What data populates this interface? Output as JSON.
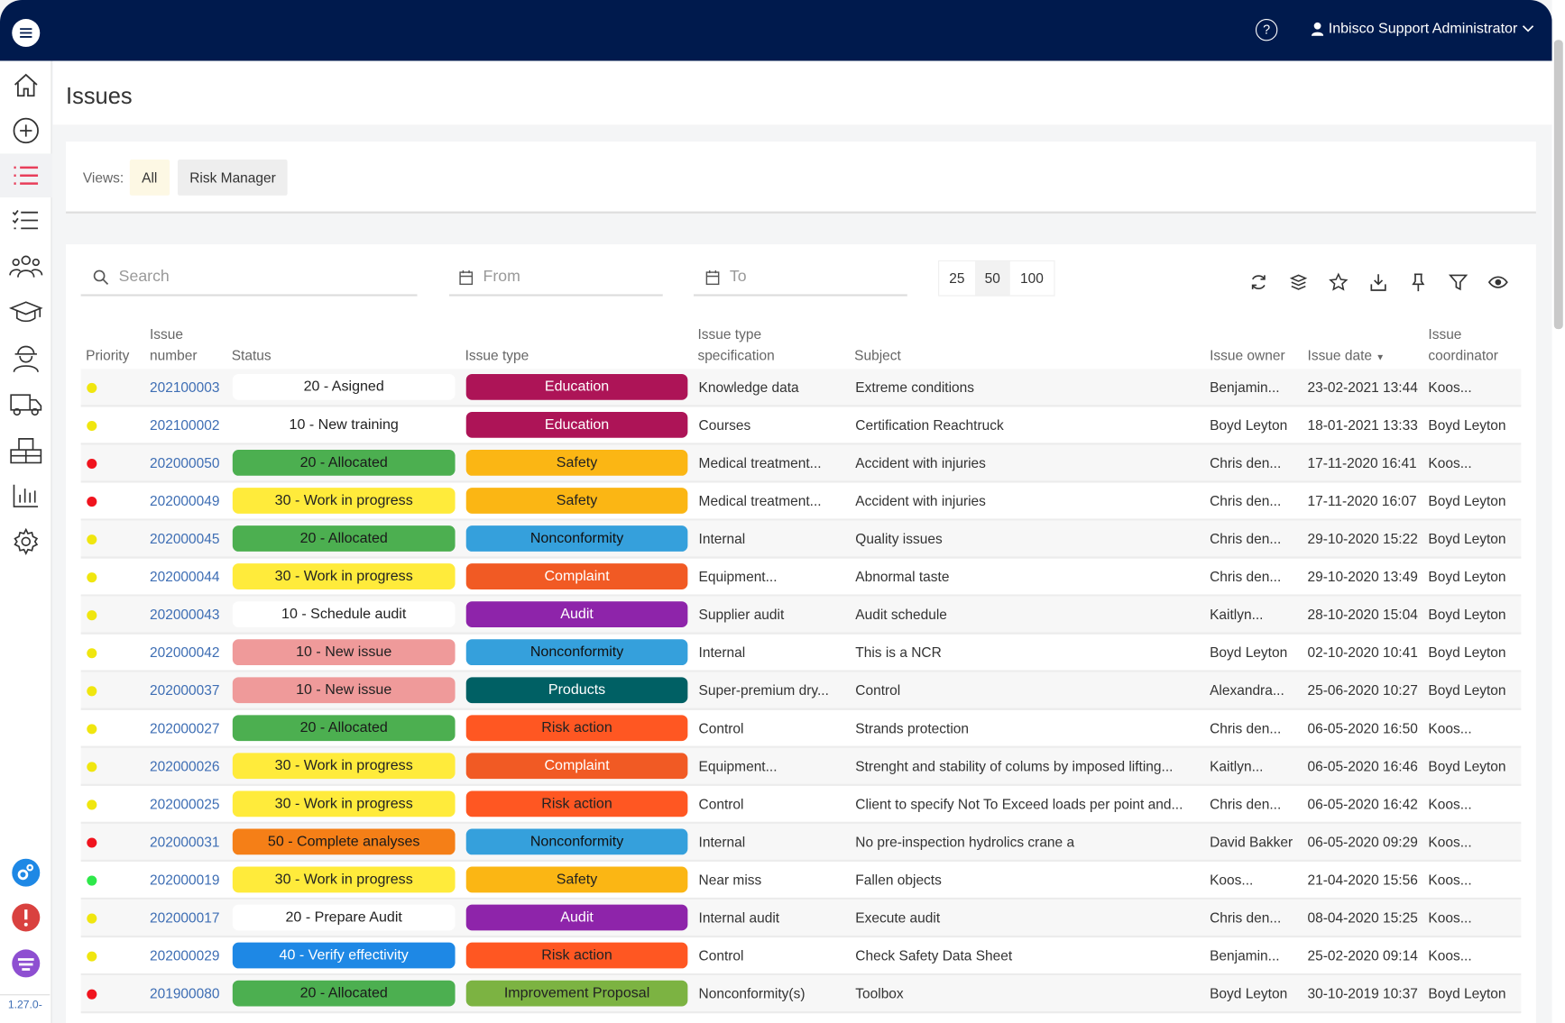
{
  "topbar": {
    "user": "Inbisco Support Administrator",
    "help": "?"
  },
  "page": {
    "title": "Issues"
  },
  "views": {
    "label": "Views:",
    "items": [
      "All",
      "Risk Manager"
    ]
  },
  "filters": {
    "search_placeholder": "Search",
    "from_placeholder": "From",
    "to_placeholder": "To",
    "page_sizes": [
      "25",
      "50",
      "100"
    ]
  },
  "columns": {
    "priority": "Priority",
    "issue_number": "Issue\nnumber",
    "status": "Status",
    "issue_type": "Issue type",
    "spec": "Issue type\nspecification",
    "subject": "Subject",
    "owner": "Issue owner",
    "date": "Issue date",
    "coordinator": "Issue\ncoordinator"
  },
  "version": "1.27.0-",
  "colors": {
    "red": "#f0141e",
    "yellow": "#f0e60f",
    "green": "#2ee84a"
  },
  "status_colors": {
    "white": [
      "#ffffff",
      "#222"
    ],
    "green": [
      "#4caf50",
      "#1a1a1a"
    ],
    "yellow": [
      "#ffeb3b",
      "#222"
    ],
    "pink": [
      "#ef9a9a",
      "#222"
    ],
    "orange": [
      "#f57f17",
      "#1a1a1a"
    ],
    "blue": [
      "#1e88e5",
      "#ffffff"
    ]
  },
  "type_colors": {
    "Education": [
      "#ad1457",
      "#fff"
    ],
    "Safety": [
      "#fbb614",
      "#222"
    ],
    "Nonconformity": [
      "#35a0dc",
      "#111"
    ],
    "Complaint": [
      "#f15a24",
      "#fff"
    ],
    "Audit": [
      "#8e24aa",
      "#fff"
    ],
    "Products": [
      "#006064",
      "#fff"
    ],
    "Risk action": [
      "#ff5722",
      "#222"
    ],
    "Improvement Proposal": [
      "#7cb342",
      "#222"
    ]
  },
  "rows": [
    {
      "priority": "yellow",
      "number": "202100003",
      "status": "20 - Asigned",
      "status_color": "white",
      "type": "Education",
      "spec": "Knowledge data",
      "subject": "Extreme conditions",
      "owner": "Benjamin...",
      "date": "23-02-2021 13:44",
      "coordinator": "Koos..."
    },
    {
      "priority": "yellow",
      "number": "202100002",
      "status": "10 - New training",
      "status_color": "white",
      "type": "Education",
      "spec": "Courses",
      "subject": "Certification Reachtruck",
      "owner": "Boyd Leyton",
      "date": "18-01-2021 13:33",
      "coordinator": "Boyd Leyton"
    },
    {
      "priority": "red",
      "number": "202000050",
      "status": "20 - Allocated",
      "status_color": "green",
      "type": "Safety",
      "spec": "Medical treatment...",
      "subject": "Accident with injuries",
      "owner": "Chris den...",
      "date": "17-11-2020 16:41",
      "coordinator": "Koos..."
    },
    {
      "priority": "red",
      "number": "202000049",
      "status": "30 - Work in progress",
      "status_color": "yellow",
      "type": "Safety",
      "spec": "Medical treatment...",
      "subject": "Accident with injuries",
      "owner": "Chris den...",
      "date": "17-11-2020 16:07",
      "coordinator": "Boyd Leyton"
    },
    {
      "priority": "yellow",
      "number": "202000045",
      "status": "20 - Allocated",
      "status_color": "green",
      "type": "Nonconformity",
      "spec": "Internal",
      "subject": "Quality issues",
      "owner": "Chris den...",
      "date": "29-10-2020 15:22",
      "coordinator": "Boyd Leyton"
    },
    {
      "priority": "yellow",
      "number": "202000044",
      "status": "30 - Work in progress",
      "status_color": "yellow",
      "type": "Complaint",
      "spec": "Equipment...",
      "subject": "Abnormal taste",
      "owner": "Chris den...",
      "date": "29-10-2020 13:49",
      "coordinator": "Boyd Leyton"
    },
    {
      "priority": "yellow",
      "number": "202000043",
      "status": "10 - Schedule audit",
      "status_color": "white",
      "type": "Audit",
      "spec": "Supplier audit",
      "subject": "Audit schedule",
      "owner": "Kaitlyn...",
      "date": "28-10-2020 15:04",
      "coordinator": "Boyd Leyton"
    },
    {
      "priority": "yellow",
      "number": "202000042",
      "status": "10 - New issue",
      "status_color": "pink",
      "type": "Nonconformity",
      "spec": "Internal",
      "subject": "This is a NCR",
      "owner": "Boyd Leyton",
      "date": "02-10-2020 10:41",
      "coordinator": "Boyd Leyton"
    },
    {
      "priority": "yellow",
      "number": "202000037",
      "status": "10 - New issue",
      "status_color": "pink",
      "type": "Products",
      "spec": "Super-premium dry...",
      "subject": "Control",
      "owner": "Alexandra...",
      "date": "25-06-2020 10:27",
      "coordinator": "Boyd Leyton"
    },
    {
      "priority": "yellow",
      "number": "202000027",
      "status": "20 - Allocated",
      "status_color": "green",
      "type": "Risk action",
      "spec": "Control",
      "subject": "Strands protection",
      "owner": "Chris den...",
      "date": "06-05-2020 16:50",
      "coordinator": "Koos..."
    },
    {
      "priority": "yellow",
      "number": "202000026",
      "status": "30 - Work in progress",
      "status_color": "yellow",
      "type": "Complaint",
      "spec": "Equipment...",
      "subject": "Strenght and stability of colums by imposed lifting...",
      "owner": "Kaitlyn...",
      "date": "06-05-2020 16:46",
      "coordinator": "Boyd Leyton"
    },
    {
      "priority": "yellow",
      "number": "202000025",
      "status": "30 - Work in progress",
      "status_color": "yellow",
      "type": "Risk action",
      "spec": "Control",
      "subject": "Client to specify Not To Exceed loads per point and...",
      "owner": "Chris den...",
      "date": "06-05-2020 16:42",
      "coordinator": "Koos..."
    },
    {
      "priority": "red",
      "number": "202000031",
      "status": "50 - Complete analyses",
      "status_color": "orange",
      "type": "Nonconformity",
      "spec": "Internal",
      "subject": "No pre-inspection hydrolics crane a",
      "owner": "David Bakker",
      "date": "06-05-2020 09:29",
      "coordinator": "Koos..."
    },
    {
      "priority": "green",
      "number": "202000019",
      "status": "30 - Work in progress",
      "status_color": "yellow",
      "type": "Safety",
      "spec": "Near miss",
      "subject": "Fallen objects",
      "owner": "Koos...",
      "date": "21-04-2020 15:56",
      "coordinator": "Koos..."
    },
    {
      "priority": "yellow",
      "number": "202000017",
      "status": "20 - Prepare Audit",
      "status_color": "white",
      "type": "Audit",
      "spec": "Internal audit",
      "subject": "Execute audit",
      "owner": "Chris den...",
      "date": "08-04-2020 15:25",
      "coordinator": "Koos..."
    },
    {
      "priority": "yellow",
      "number": "202000029",
      "status": "40 - Verify effectivity",
      "status_color": "blue",
      "type": "Risk action",
      "spec": "Control",
      "subject": "Check Safety Data Sheet",
      "owner": "Benjamin...",
      "date": "25-02-2020 09:14",
      "coordinator": "Koos..."
    },
    {
      "priority": "red",
      "number": "201900080",
      "status": "20 - Allocated",
      "status_color": "green",
      "type": "Improvement Proposal",
      "spec": "Nonconformity(s)",
      "subject": "Toolbox",
      "owner": "Boyd Leyton",
      "date": "30-10-2019 10:37",
      "coordinator": "Boyd Leyton"
    }
  ]
}
